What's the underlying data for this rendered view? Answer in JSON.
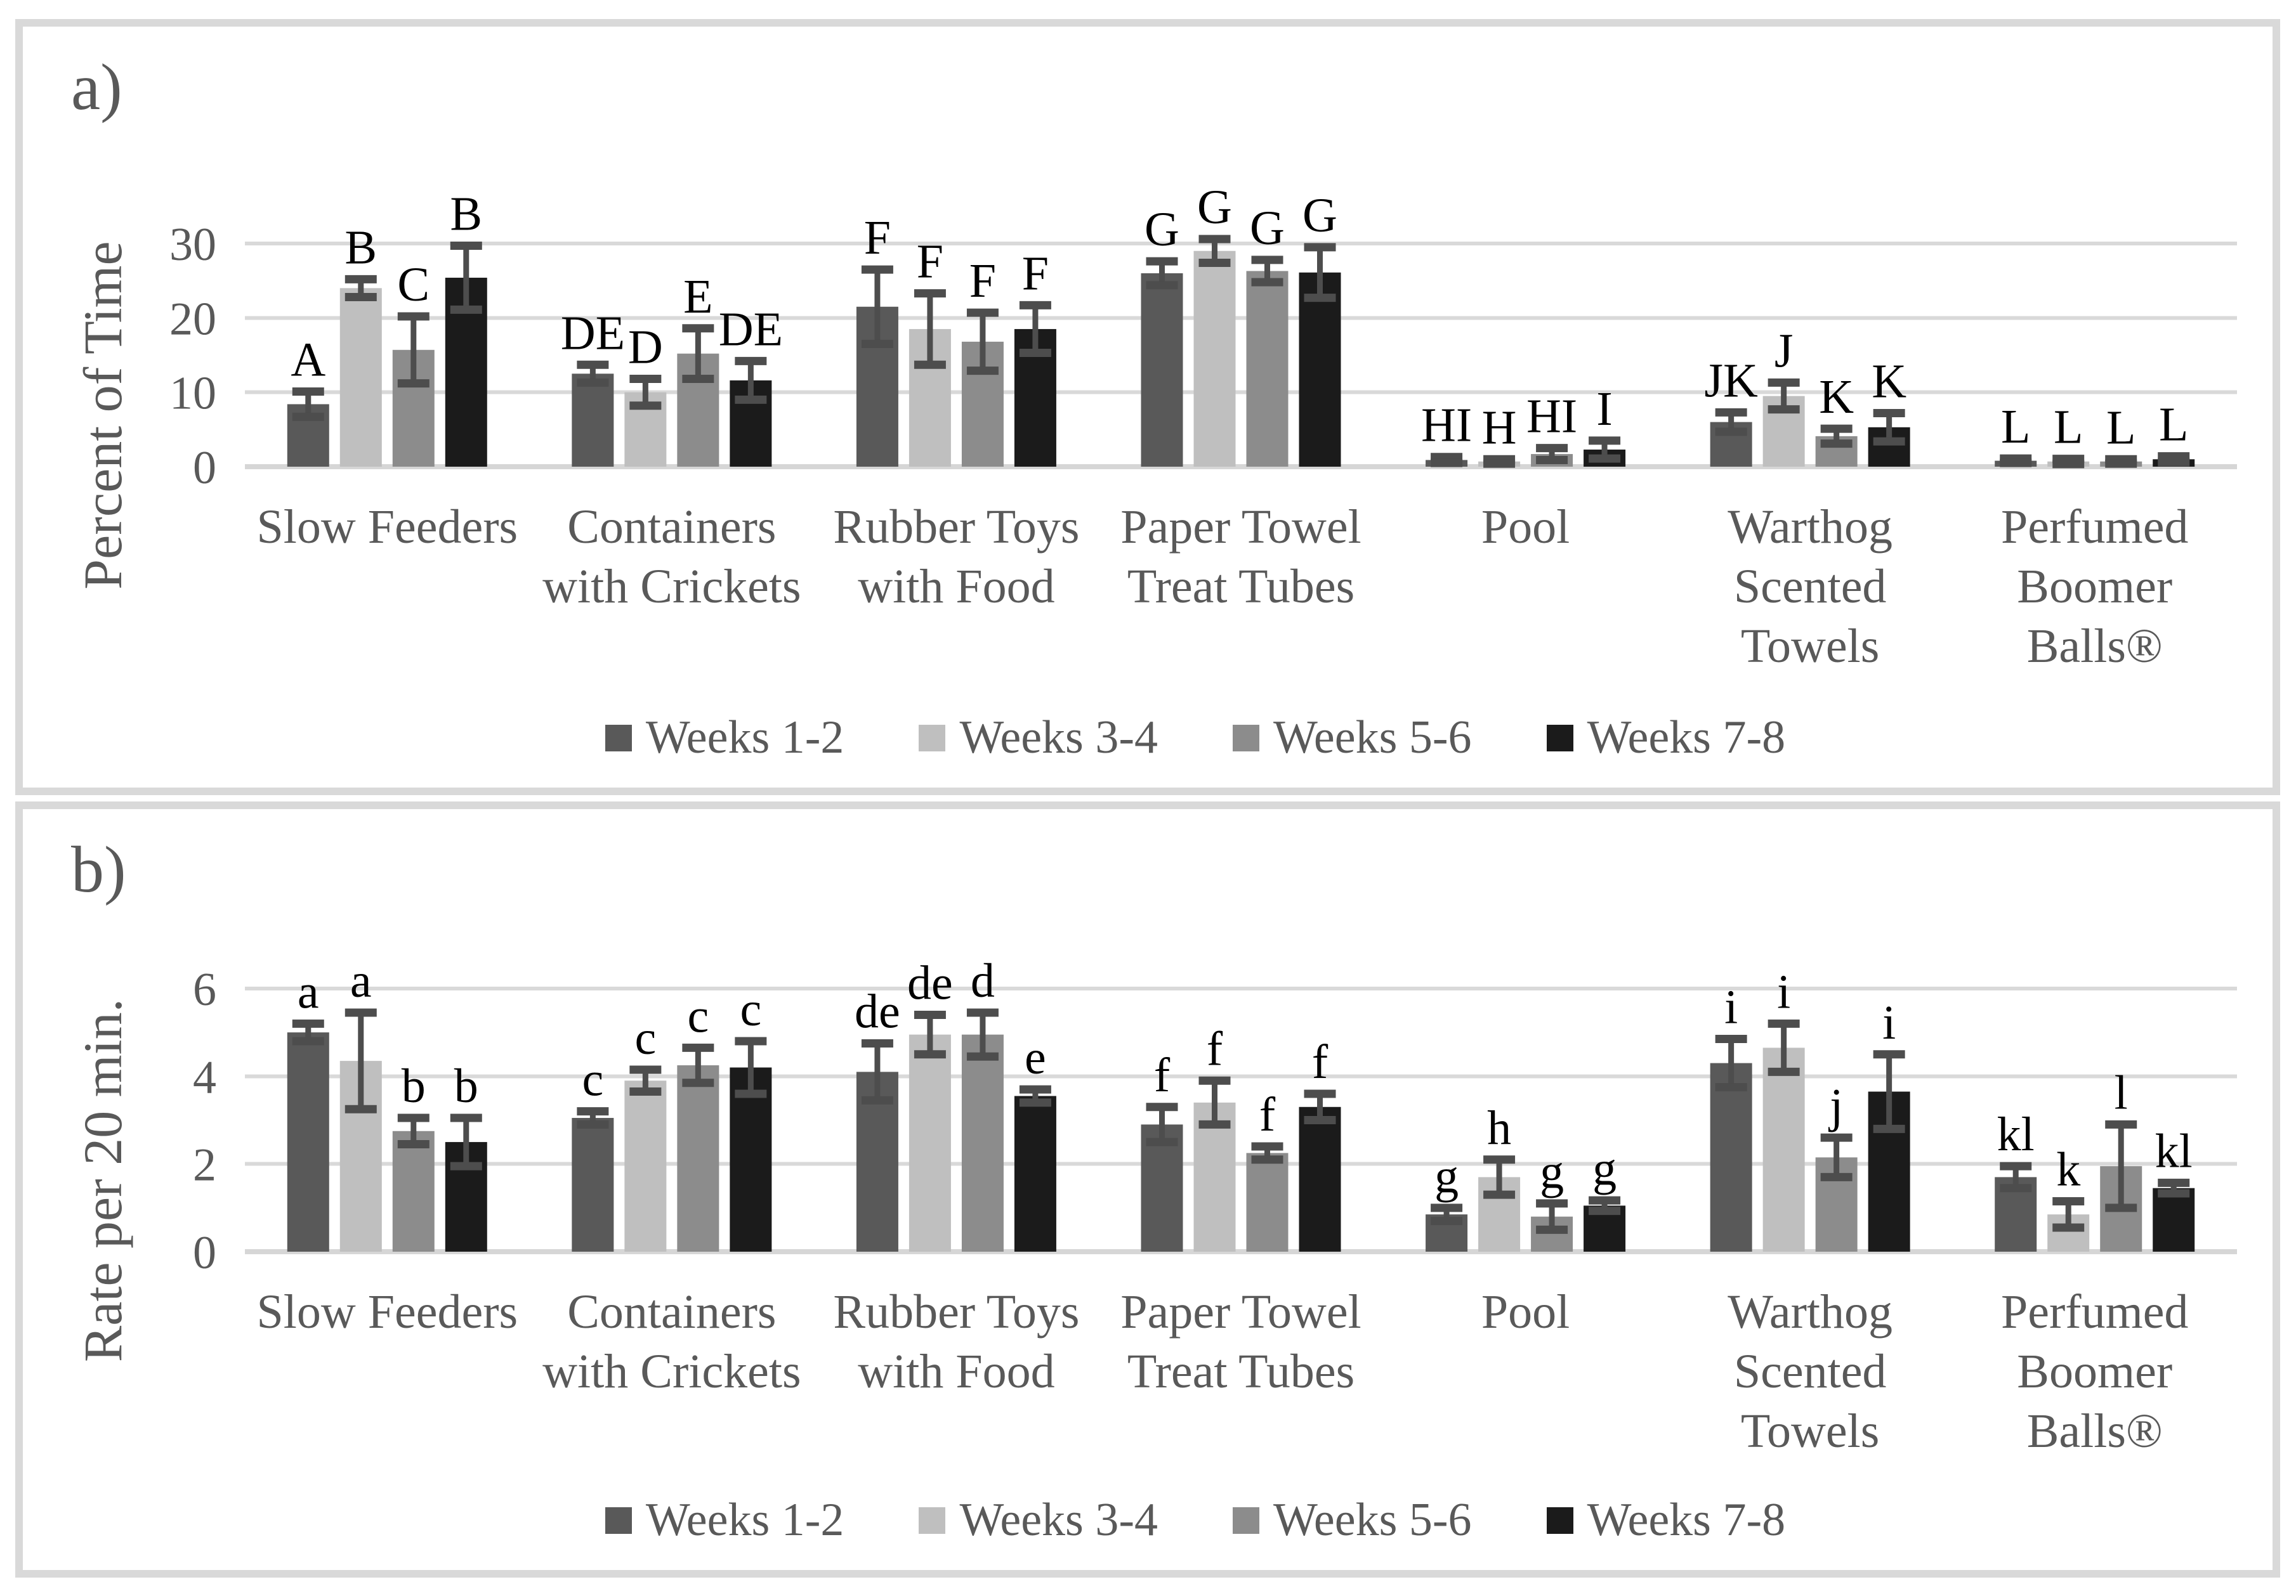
{
  "figure": {
    "panel_a_label": "a)",
    "panel_b_label": "b)"
  },
  "colors": {
    "gridline": "#d9d9d9",
    "baseline": "#d6d6d6",
    "error_bar": "#4d4d4d",
    "axis_text": "#595959",
    "sig_letter": "#000000",
    "panel_border": "#d9d9d9"
  },
  "chart_data": [
    {
      "type": "bar",
      "panel": "a",
      "ylabel": "Percent of Time",
      "yticks": [
        0,
        10,
        20,
        30
      ],
      "ylim": [
        0,
        30
      ],
      "grid": true,
      "legend_position": "bottom",
      "categories": [
        "Slow Feeders",
        "Containers with Crickets",
        "Rubber Toys with Food",
        "Paper Towel Treat Tubes",
        "Pool",
        "Warthog Scented Towels",
        "Perfumed Boomer Balls®"
      ],
      "category_lines": [
        [
          "Slow Feeders"
        ],
        [
          "Containers",
          "with Crickets"
        ],
        [
          "Rubber Toys",
          "with Food"
        ],
        [
          "Paper Towel",
          "Treat Tubes"
        ],
        [
          "Pool"
        ],
        [
          "Warthog",
          "Scented",
          "Towels"
        ],
        [
          "Perfumed",
          "Boomer",
          "Balls®"
        ]
      ],
      "series": [
        {
          "name": "Weeks 1-2",
          "color": "#595959",
          "values": [
            8.4,
            12.5,
            21.5,
            26.0,
            0.9,
            6.0,
            0.8
          ],
          "errors": [
            1.7,
            1.2,
            5.0,
            1.6,
            0.4,
            1.3,
            0.3
          ],
          "letters": [
            "A",
            "DE",
            "F",
            "G",
            "HI",
            "JK",
            "L"
          ]
        },
        {
          "name": "Weeks 3-4",
          "color": "#bfbfbf",
          "values": [
            24.0,
            10.0,
            18.5,
            29.0,
            0.7,
            9.5,
            0.7
          ],
          "errors": [
            1.2,
            1.8,
            4.8,
            1.6,
            0.3,
            1.8,
            0.35
          ],
          "letters": [
            "B",
            "D",
            "F",
            "G",
            "H",
            "J",
            "L"
          ]
        },
        {
          "name": "Weeks 5-6",
          "color": "#8c8c8c",
          "values": [
            15.7,
            15.2,
            16.8,
            26.3,
            1.7,
            4.1,
            0.7
          ],
          "errors": [
            4.5,
            3.4,
            3.9,
            1.5,
            0.8,
            1.0,
            0.3
          ],
          "letters": [
            "C",
            "E",
            "F",
            "G",
            "HI",
            "K",
            "L"
          ]
        },
        {
          "name": "Weeks 7-8",
          "color": "#1b1b1b",
          "values": [
            25.4,
            11.6,
            18.5,
            26.1,
            2.3,
            5.3,
            1.0
          ],
          "errors": [
            4.3,
            2.6,
            3.2,
            3.4,
            1.2,
            1.9,
            0.4
          ],
          "letters": [
            "B",
            "DE",
            "F",
            "G",
            "I",
            "K",
            "L"
          ]
        }
      ]
    },
    {
      "type": "bar",
      "panel": "b",
      "ylabel": "Rate per 20 min.",
      "yticks": [
        0,
        2,
        4,
        6
      ],
      "ylim": [
        0,
        6
      ],
      "grid": true,
      "legend_position": "bottom",
      "categories": [
        "Slow Feeders",
        "Containers with Crickets",
        "Rubber Toys with Food",
        "Paper Towel Treat Tubes",
        "Pool",
        "Warthog Scented Towels",
        "Perfumed Boomer Balls®"
      ],
      "category_lines": [
        [
          "Slow Feeders"
        ],
        [
          "Containers",
          "with Crickets"
        ],
        [
          "Rubber Toys",
          "with Food"
        ],
        [
          "Paper Towel",
          "Treat Tubes"
        ],
        [
          "Pool"
        ],
        [
          "Warthog",
          "Scented",
          "Towels"
        ],
        [
          "Perfumed",
          "Boomer",
          "Balls®"
        ]
      ],
      "series": [
        {
          "name": "Weeks 1-2",
          "color": "#595959",
          "values": [
            5.0,
            3.05,
            4.1,
            2.9,
            0.85,
            4.3,
            1.7
          ],
          "errors": [
            0.2,
            0.15,
            0.65,
            0.4,
            0.15,
            0.55,
            0.25
          ],
          "letters": [
            "a",
            "c",
            "de",
            "f",
            "g",
            "i",
            "kl"
          ]
        },
        {
          "name": "Weeks 3-4",
          "color": "#bfbfbf",
          "values": [
            4.35,
            3.9,
            4.95,
            3.4,
            1.7,
            4.65,
            0.85
          ],
          "errors": [
            1.1,
            0.25,
            0.45,
            0.5,
            0.4,
            0.55,
            0.3
          ],
          "letters": [
            "a",
            "c",
            "de",
            "f",
            "h",
            "i",
            "k"
          ]
        },
        {
          "name": "Weeks 5-6",
          "color": "#8c8c8c",
          "values": [
            2.75,
            4.25,
            4.95,
            2.25,
            0.8,
            2.15,
            1.95
          ],
          "errors": [
            0.3,
            0.4,
            0.5,
            0.15,
            0.3,
            0.45,
            0.95
          ],
          "letters": [
            "b",
            "c",
            "d",
            "f",
            "g",
            "j",
            "l"
          ]
        },
        {
          "name": "Weeks 7-8",
          "color": "#1b1b1b",
          "values": [
            2.5,
            4.2,
            3.55,
            3.3,
            1.05,
            3.65,
            1.45
          ],
          "errors": [
            0.55,
            0.6,
            0.15,
            0.3,
            0.12,
            0.85,
            0.12
          ],
          "letters": [
            "b",
            "c",
            "e",
            "f",
            "g",
            "i",
            "kl"
          ]
        }
      ]
    }
  ]
}
